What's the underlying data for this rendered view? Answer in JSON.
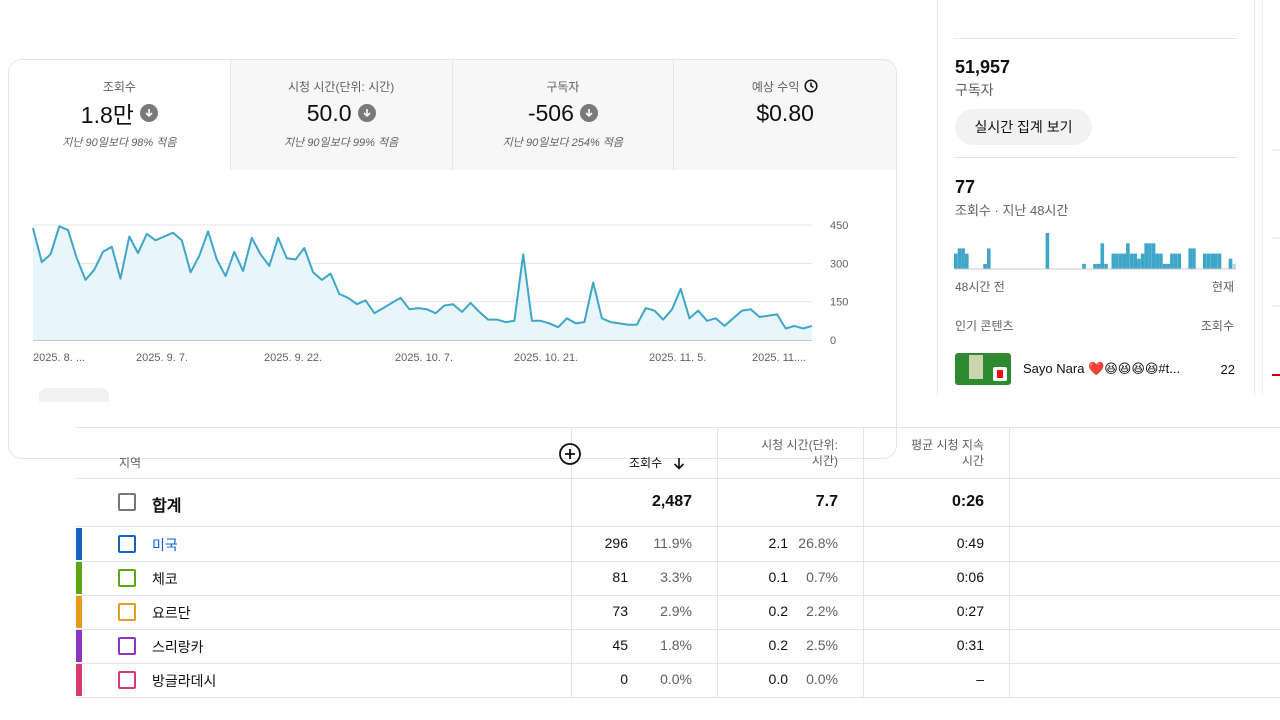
{
  "overview": {
    "metrics": [
      {
        "label": "조회수",
        "value": "1.8만",
        "sub": "지난 90일보다 98% 적음",
        "icon": "arrow-down-circle-icon",
        "selected": true
      },
      {
        "label": "시청 시간(단위: 시간)",
        "value": "50.0",
        "sub": "지난 90일보다 99% 적음",
        "icon": "arrow-down-circle-icon"
      },
      {
        "label": "구독자",
        "value": "-506",
        "sub": "지난 90일보다 254% 적음",
        "icon": "arrow-down-circle-icon"
      },
      {
        "label": "예상 수익",
        "value": "$0.80",
        "sub": "",
        "icon": "clock-icon"
      }
    ]
  },
  "chart_data": {
    "type": "area",
    "title": "",
    "xlabel": "",
    "ylabel": "",
    "ylim": [
      0,
      450
    ],
    "yticks": [
      "450",
      "300",
      "150",
      "0"
    ],
    "xticks": [
      "2025. 8. ...",
      "2025. 9. 7.",
      "2025. 9. 22.",
      "2025. 10. 7.",
      "2025. 10. 21.",
      "2025. 11. 5.",
      "2025. 11...."
    ],
    "grid": true,
    "color": "#3ea6c8",
    "fill": "#e8f5fb",
    "values": [
      438,
      305,
      335,
      445,
      430,
      320,
      235,
      275,
      345,
      365,
      240,
      405,
      340,
      415,
      390,
      405,
      420,
      390,
      265,
      330,
      425,
      315,
      250,
      345,
      270,
      400,
      335,
      290,
      400,
      320,
      315,
      360,
      265,
      235,
      260,
      180,
      165,
      140,
      155,
      105,
      125,
      145,
      165,
      120,
      125,
      120,
      105,
      135,
      140,
      110,
      145,
      110,
      80,
      80,
      70,
      75,
      335,
      75,
      75,
      65,
      50,
      85,
      65,
      70,
      225,
      85,
      70,
      65,
      60,
      60,
      125,
      115,
      80,
      120,
      200,
      85,
      115,
      75,
      85,
      55,
      85,
      115,
      120,
      90,
      95,
      100,
      45,
      55,
      45,
      55
    ]
  },
  "realtime": {
    "subscribers_value": "51,957",
    "subscribers_label": "구독자",
    "live_button": "실시간 집계 보기",
    "views_value": "77",
    "views_label": "조회수 · 지난 48시간",
    "bar_values": [
      3,
      4,
      4,
      3,
      0,
      0,
      0,
      0,
      1,
      4,
      0,
      0,
      0,
      0,
      0,
      0,
      0,
      0,
      0,
      0,
      0,
      0,
      0,
      0,
      0,
      7,
      0,
      0,
      0,
      0,
      0,
      0,
      0,
      0,
      0,
      1,
      0,
      0,
      1,
      1,
      5,
      1,
      0,
      3,
      3,
      3,
      3,
      5,
      3,
      3,
      2,
      3,
      5,
      5,
      5,
      3,
      3,
      1,
      1,
      3,
      3,
      3,
      0,
      0,
      4,
      4,
      0,
      0,
      3,
      3,
      3,
      3,
      3,
      0,
      0,
      2,
      1
    ],
    "axis_left": "48시간 전",
    "axis_right": "현재",
    "popular_label": "인기 콘텐츠",
    "popular_col": "조회수",
    "video_title": "Sayo Nara ❤️😆😆😆😆#t...",
    "video_count": "22"
  },
  "table": {
    "headers": {
      "region": "지역",
      "views": "조회수",
      "watch_time_1": "시청 시간(단위:",
      "watch_time_2": "시간)",
      "avg_1": "평균 시청 지속",
      "avg_2": "시간"
    },
    "total": {
      "label": "합계",
      "views": "2,487",
      "watch": "7.7",
      "avg": "0:26"
    },
    "rows": [
      {
        "name": "미국",
        "views": "296",
        "views_pct": "11.9%",
        "watch": "2.1",
        "watch_pct": "26.8%",
        "avg": "0:49",
        "color": "#1565c0"
      },
      {
        "name": "체코",
        "views": "81",
        "views_pct": "3.3%",
        "watch": "0.1",
        "watch_pct": "0.7%",
        "avg": "0:06",
        "color": "#5ba615"
      },
      {
        "name": "요르단",
        "views": "73",
        "views_pct": "2.9%",
        "watch": "0.2",
        "watch_pct": "2.2%",
        "avg": "0:27",
        "color": "#e89b1a"
      },
      {
        "name": "스리랑카",
        "views": "45",
        "views_pct": "1.8%",
        "watch": "0.2",
        "watch_pct": "2.5%",
        "avg": "0:31",
        "color": "#8e35c2"
      },
      {
        "name": "방글라데시",
        "views": "0",
        "views_pct": "0.0%",
        "watch": "0.0",
        "watch_pct": "0.0%",
        "avg": "–",
        "color": "#d63a6a"
      }
    ]
  }
}
